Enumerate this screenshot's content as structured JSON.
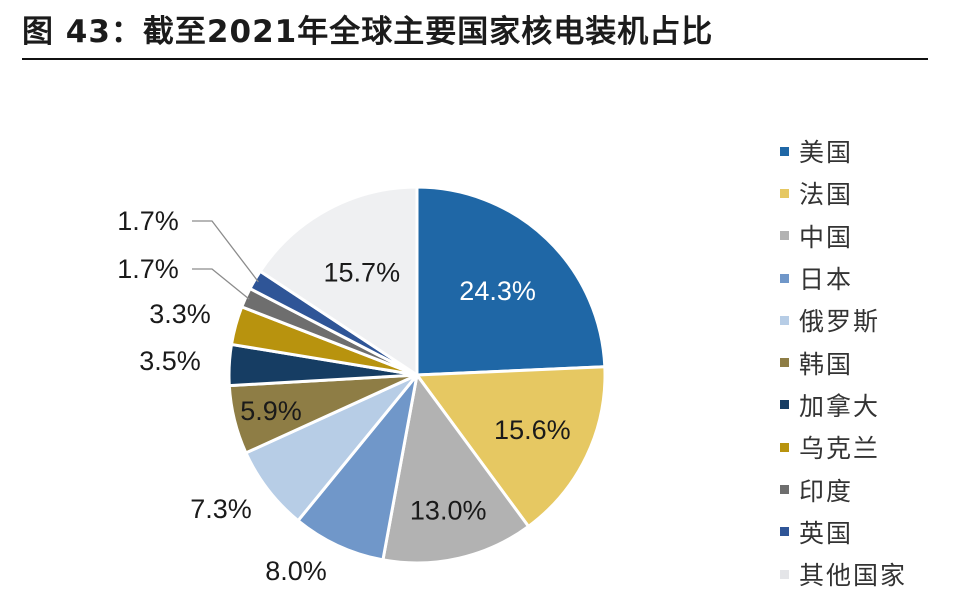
{
  "title": "图 43：截至2021年全球主要国家核电装机占比",
  "chart_data": {
    "type": "pie",
    "title": "",
    "start": "12 o'clock",
    "direction": "clockwise",
    "legend_position": "right",
    "slices": [
      {
        "label": "美国",
        "value": 24.3,
        "value_label": "24.3%",
        "color": "#1f67a6"
      },
      {
        "label": "法国",
        "value": 15.6,
        "value_label": "15.6%",
        "color": "#e6c862"
      },
      {
        "label": "中国",
        "value": 13.0,
        "value_label": "13.0%",
        "color": "#b2b2b2"
      },
      {
        "label": "日本",
        "value": 8.0,
        "value_label": "8.0%",
        "color": "#7097c9"
      },
      {
        "label": "俄罗斯",
        "value": 7.3,
        "value_label": "7.3%",
        "color": "#b7cde6"
      },
      {
        "label": "韩国",
        "value": 5.9,
        "value_label": "5.9%",
        "color": "#8e7d45"
      },
      {
        "label": "加拿大",
        "value": 3.5,
        "value_label": "3.5%",
        "color": "#163d63"
      },
      {
        "label": "乌克兰",
        "value": 3.3,
        "value_label": "3.3%",
        "color": "#b8930e"
      },
      {
        "label": "印度",
        "value": 1.7,
        "value_label": "1.7%",
        "color": "#6e6e6e"
      },
      {
        "label": "英国",
        "value": 1.7,
        "value_label": "1.7%",
        "color": "#2f5597"
      },
      {
        "label": "其他国家",
        "value": 15.7,
        "value_label": "15.7%",
        "color": "#eff0f2"
      }
    ]
  }
}
